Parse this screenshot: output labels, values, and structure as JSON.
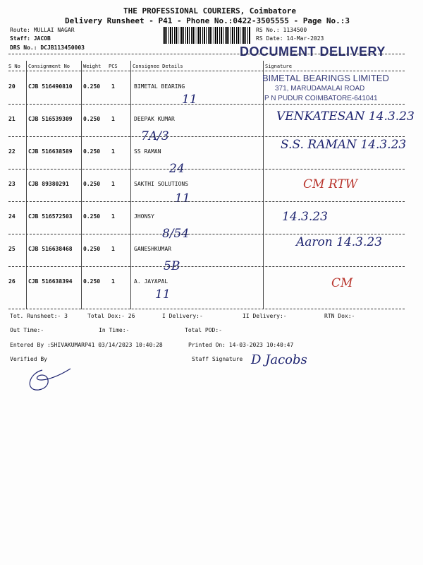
{
  "header": {
    "company": "THE PROFESSIONAL COURIERS, Coimbatore",
    "subtitle": "Delivery Runsheet - P41 - Phone No.:0422-3505555 - Page No.:3",
    "route": "Route: MULLAI NAGAR",
    "staff": "Staff: JACOB",
    "drs_no": "DRS No.: DCJB113450003",
    "rs_no": "RS No.: 1134500",
    "rs_date": "RS Date: 14-Mar-2023",
    "stamp": "DOCUMENT DELIVERY"
  },
  "table": {
    "columns": [
      "S No",
      "Consignment No",
      "Weight",
      "PCS",
      "Consignee Details",
      "Signature"
    ],
    "rows": [
      {
        "sno": "20",
        "cons": "CJB 516490810",
        "weight": "0.250",
        "pcs": "1",
        "consignee": "BIMETAL BEARING",
        "hw_addr": "11",
        "sig": ""
      },
      {
        "sno": "21",
        "cons": "CJB 516539309",
        "weight": "0.250",
        "pcs": "1",
        "consignee": "DEEPAK KUMAR",
        "hw_addr": "7A/3",
        "sig": "VENKATESAN 14.3.23"
      },
      {
        "sno": "22",
        "cons": "CJB 516638589",
        "weight": "0.250",
        "pcs": "1",
        "consignee": "SS RAMAN",
        "hw_addr": "24",
        "sig": "S.S. RAMAN 14.3.23"
      },
      {
        "sno": "23",
        "cons": "CJB 89380291",
        "weight": "0.250",
        "pcs": "1",
        "consignee": "SAKTHI SOLUTIONS",
        "hw_addr": "11",
        "sig": "CM RTW"
      },
      {
        "sno": "24",
        "cons": "CJB 516572503",
        "weight": "0.250",
        "pcs": "1",
        "consignee": "JHONSY",
        "hw_addr": "8/54",
        "sig": "14.3.23"
      },
      {
        "sno": "25",
        "cons": "CJB 516638468",
        "weight": "0.250",
        "pcs": "1",
        "consignee": "GANESHKUMAR",
        "hw_addr": "5B",
        "sig": "Aaron 14.3.23"
      },
      {
        "sno": "26",
        "cons": "CJB 516638394",
        "weight": "0.250",
        "pcs": "1",
        "consignee": "A. JAYAPAL",
        "hw_addr": "11",
        "sig": "CM"
      }
    ],
    "company_stamp": {
      "line1": "BIMETAL BEARINGS LIMITED",
      "line2": "371, MARUDAMALAI ROAD",
      "line3": "P N PUDUR COIMBATORE-641041"
    }
  },
  "footer": {
    "tot_runsheet": "Tot. Runsheet:- 3",
    "total_dox": "Total Dox:-   26",
    "i_delivery": "I Delivery:-",
    "ii_delivery": "II Delivery:-",
    "rtn_dox": "RTN Dox:-",
    "out_time": "Out Time:-",
    "in_time": "In Time:-",
    "total_pod": "Total POD:-",
    "entered_by": "Entered By :SHIVAKUMARP41 03/14/2023 10:40:28",
    "printed_on": "Printed On: 14-03-2023 10:40:47",
    "verified_by": "Verified By",
    "staff_signature": "Staff Signature",
    "staff_sig_hw": "D Jacobs"
  },
  "colors": {
    "ink": "#1e2470",
    "red_ink": "#b8342c",
    "stamp": "#2a2f6e"
  }
}
